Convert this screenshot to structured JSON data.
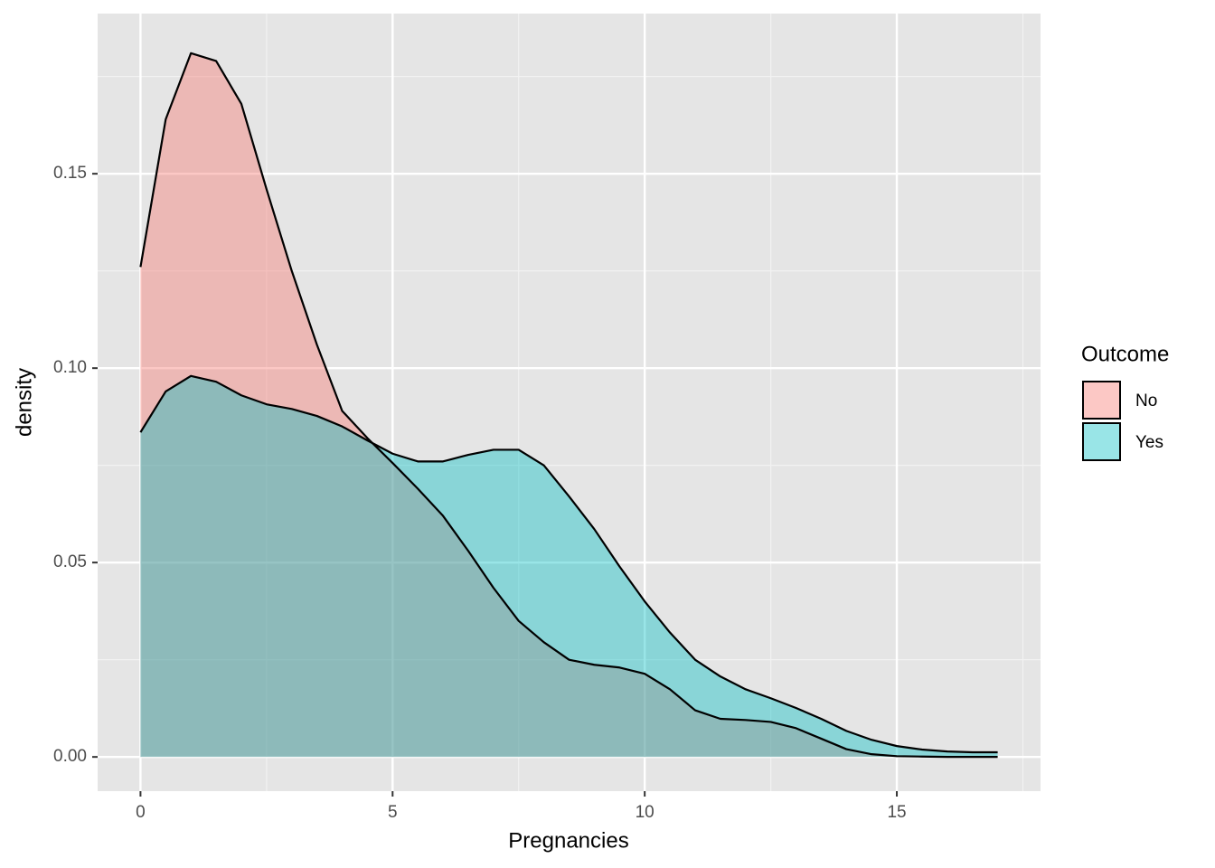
{
  "chart_data": {
    "type": "density",
    "x_label": "Pregnancies",
    "y_label": "density",
    "legend_title": "Outcome",
    "x": [
      0,
      0.5,
      1,
      1.5,
      2,
      2.5,
      3,
      3.5,
      4,
      4.5,
      5,
      5.5,
      6,
      6.5,
      7,
      7.5,
      8,
      8.5,
      9,
      9.5,
      10,
      10.5,
      11,
      11.5,
      12,
      12.5,
      13,
      13.5,
      14,
      14.5,
      15,
      15.5,
      16,
      16.5,
      17
    ],
    "series": [
      {
        "name": "No",
        "color": "#F8766D",
        "values": [
          0.126,
          0.164,
          0.181,
          0.179,
          0.168,
          0.146,
          0.125,
          0.106,
          0.089,
          0.082,
          0.0756,
          0.069,
          0.062,
          0.053,
          0.0435,
          0.035,
          0.0295,
          0.025,
          0.0237,
          0.023,
          0.0214,
          0.0174,
          0.012,
          0.0098,
          0.0095,
          0.009,
          0.0074,
          0.0047,
          0.002,
          0.0007,
          0.0002,
          0.0001,
          0,
          0,
          0
        ]
      },
      {
        "name": "Yes",
        "color": "#00BFC4",
        "values": [
          0.0835,
          0.094,
          0.098,
          0.0965,
          0.093,
          0.0907,
          0.0895,
          0.0877,
          0.085,
          0.0814,
          0.078,
          0.076,
          0.076,
          0.0777,
          0.079,
          0.079,
          0.075,
          0.067,
          0.0586,
          0.049,
          0.04,
          0.032,
          0.025,
          0.0207,
          0.0174,
          0.0151,
          0.0126,
          0.0098,
          0.0067,
          0.0044,
          0.0028,
          0.0019,
          0.0014,
          0.0012,
          0.0012
        ]
      }
    ],
    "xlim": [
      -0.85,
      17.85
    ],
    "ylim": [
      -0.0088,
      0.1912
    ],
    "xticks": [
      0,
      5,
      10,
      15
    ],
    "yticks": [
      {
        "value": 0,
        "label": "0.00"
      },
      {
        "value": 0.05,
        "label": "0.05"
      },
      {
        "value": 0.1,
        "label": "0.10"
      },
      {
        "value": 0.15,
        "label": "0.15"
      }
    ],
    "fill_opacity": 0.4,
    "grid": true,
    "legend": "right"
  }
}
